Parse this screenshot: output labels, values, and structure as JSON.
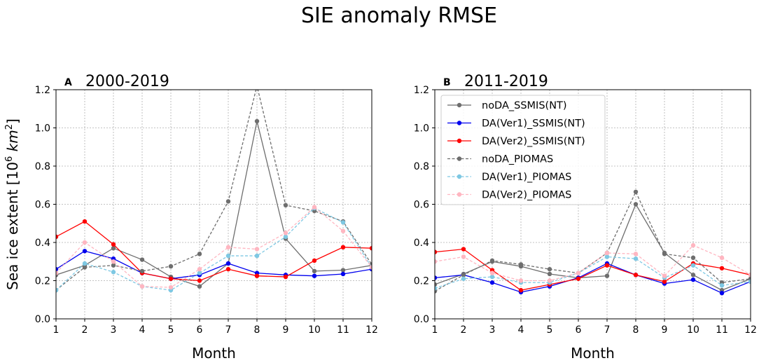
{
  "figure_title": "SIE anomaly RMSE",
  "colors": {
    "noDA": "#6e6e6e",
    "DA_Ver1": "#0000ee",
    "DA_Ver2": "#ff0000",
    "DA_Ver1_PIOMAS": "#7ec8e3",
    "DA_Ver2_PIOMAS": "#ffb6c1"
  },
  "chart_data": [
    {
      "panel_label": "A",
      "title": "2000-2019",
      "type": "line",
      "xlabel": "Month",
      "ylabel": "Sea ice extent [10",
      "ylabel_sup": "6",
      "ylabel_unit": "km",
      "ylabel_unit_sup": "2",
      "ylabel_close": "]",
      "xlim": [
        1,
        12
      ],
      "ylim": [
        0,
        1.2
      ],
      "xticks": [
        "1",
        "2",
        "3",
        "4",
        "5",
        "6",
        "7",
        "8",
        "9",
        "10",
        "11",
        "12"
      ],
      "yticks": [
        "0.0",
        "0.2",
        "0.4",
        "0.6",
        "0.8",
        "1.0",
        "1.2"
      ],
      "x": [
        1,
        2,
        3,
        4,
        5,
        6,
        7,
        8,
        9,
        10,
        11,
        12
      ],
      "series": [
        {
          "name": "noDA_SSMIS(NT)",
          "color": "#6e6e6e",
          "dashed": false,
          "values": [
            0.23,
            0.28,
            0.37,
            0.31,
            0.22,
            0.17,
            0.29,
            1.035,
            0.42,
            0.25,
            0.255,
            0.28
          ]
        },
        {
          "name": "DA(Ver1)_SSMIS(NT)",
          "color": "#0000ee",
          "dashed": false,
          "values": [
            0.26,
            0.355,
            0.315,
            0.24,
            0.21,
            0.23,
            0.29,
            0.24,
            0.23,
            0.225,
            0.235,
            0.26
          ]
        },
        {
          "name": "DA(Ver2)_SSMIS(NT)",
          "color": "#ff0000",
          "dashed": false,
          "values": [
            0.43,
            0.51,
            0.39,
            0.24,
            0.21,
            0.2,
            0.26,
            0.225,
            0.22,
            0.305,
            0.375,
            0.37
          ]
        },
        {
          "name": "noDA_PIOMAS",
          "color": "#6e6e6e",
          "dashed": true,
          "values": [
            0.15,
            0.27,
            0.28,
            0.25,
            0.275,
            0.34,
            0.615,
            1.22,
            0.595,
            0.565,
            0.51,
            0.285
          ]
        },
        {
          "name": "DA(Ver1)_PIOMAS",
          "color": "#7ec8e3",
          "dashed": true,
          "values": [
            0.15,
            0.29,
            0.245,
            0.17,
            0.15,
            0.24,
            0.33,
            0.33,
            0.43,
            0.58,
            0.505,
            0.27
          ]
        },
        {
          "name": "DA(Ver2)_PIOMAS",
          "color": "#ffb6c1",
          "dashed": true,
          "values": [
            0.24,
            0.4,
            0.3,
            0.17,
            0.165,
            0.26,
            0.375,
            0.365,
            0.45,
            0.585,
            0.46,
            0.27
          ]
        }
      ]
    },
    {
      "panel_label": "B",
      "title": "2011-2019",
      "type": "line",
      "xlabel": "Month",
      "xlim": [
        1,
        12
      ],
      "ylim": [
        0,
        1.2
      ],
      "xticks": [
        "1",
        "2",
        "3",
        "4",
        "5",
        "6",
        "7",
        "8",
        "9",
        "10",
        "11",
        "12"
      ],
      "yticks": [
        "0.0",
        "0.2",
        "0.4",
        "0.6",
        "0.8",
        "1.0",
        "1.2"
      ],
      "legend_location": "upper-left",
      "x": [
        1,
        2,
        3,
        4,
        5,
        6,
        7,
        8,
        9,
        10,
        11,
        12
      ],
      "series": [
        {
          "name": "noDA_SSMIS(NT)",
          "color": "#6e6e6e",
          "dashed": false,
          "values": [
            0.18,
            0.235,
            0.3,
            0.275,
            0.235,
            0.215,
            0.225,
            0.6,
            0.345,
            0.23,
            0.15,
            0.21
          ]
        },
        {
          "name": "DA(Ver1)_SSMIS(NT)",
          "color": "#0000ee",
          "dashed": false,
          "values": [
            0.215,
            0.23,
            0.19,
            0.14,
            0.17,
            0.215,
            0.29,
            0.23,
            0.185,
            0.205,
            0.135,
            0.195
          ]
        },
        {
          "name": "DA(Ver2)_SSMIS(NT)",
          "color": "#ff0000",
          "dashed": false,
          "values": [
            0.35,
            0.365,
            0.255,
            0.15,
            0.18,
            0.21,
            0.28,
            0.23,
            0.195,
            0.29,
            0.265,
            0.23
          ]
        },
        {
          "name": "noDA_PIOMAS",
          "color": "#6e6e6e",
          "dashed": true,
          "values": [
            0.145,
            0.23,
            0.305,
            0.285,
            0.26,
            0.24,
            0.345,
            0.665,
            0.34,
            0.32,
            0.19,
            0.21
          ]
        },
        {
          "name": "DA(Ver1)_PIOMAS",
          "color": "#7ec8e3",
          "dashed": true,
          "values": [
            0.16,
            0.21,
            0.22,
            0.19,
            0.19,
            0.24,
            0.325,
            0.315,
            0.215,
            0.28,
            0.175,
            0.195
          ]
        },
        {
          "name": "DA(Ver2)_PIOMAS",
          "color": "#ffb6c1",
          "dashed": true,
          "values": [
            0.3,
            0.325,
            0.24,
            0.2,
            0.2,
            0.24,
            0.345,
            0.34,
            0.225,
            0.385,
            0.32,
            0.23
          ]
        }
      ]
    }
  ]
}
